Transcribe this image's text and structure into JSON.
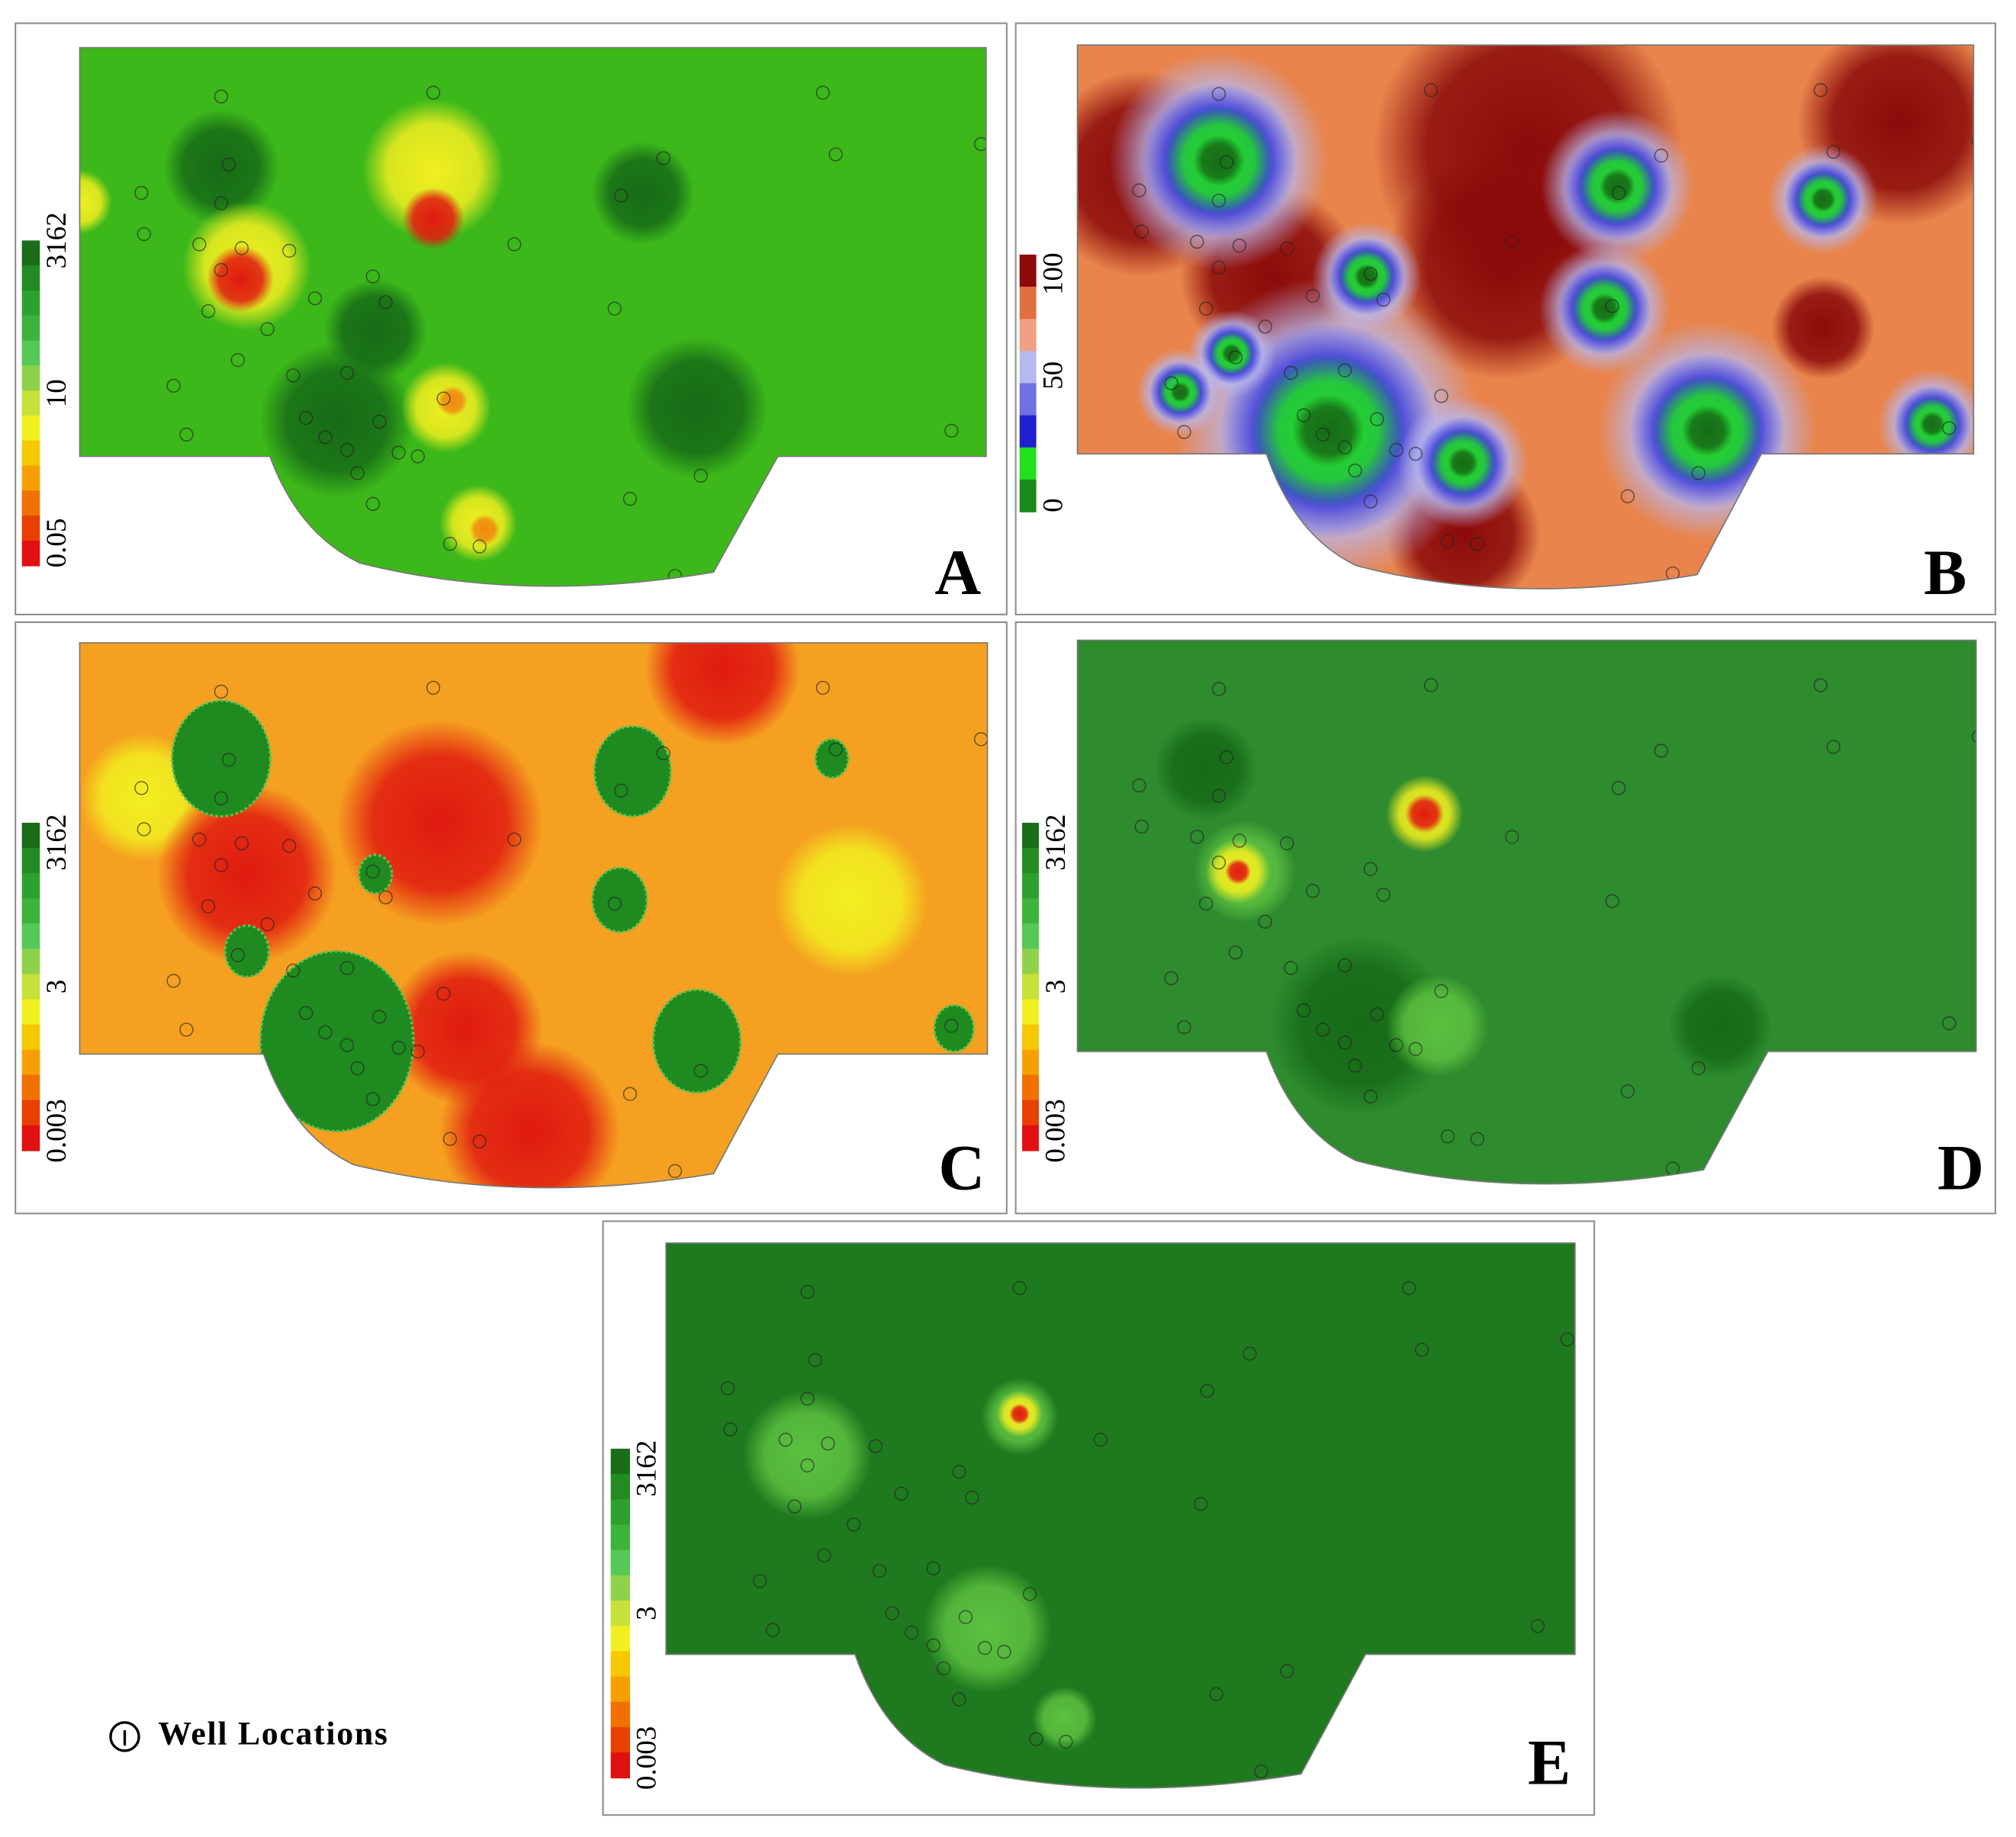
{
  "panels": [
    {
      "label": "A",
      "colorbar": {
        "ticks": [
          3162,
          10,
          0.05
        ],
        "colors": [
          "#1a6e1a",
          "#228b22",
          "#2ea02e",
          "#3cb43c",
          "#55c855",
          "#8fd24a",
          "#c8e03a",
          "#f0f020",
          "#f5c800",
          "#f5a000",
          "#f07000",
          "#e84000",
          "#e01010"
        ]
      }
    },
    {
      "label": "B",
      "colorbar": {
        "ticks": [
          100,
          50,
          0
        ],
        "colors": [
          "#8b0a0a",
          "#e07040",
          "#f0a080",
          "#b8b8f0",
          "#7070e0",
          "#2020d0",
          "#20e020",
          "#1a8a1a"
        ]
      }
    },
    {
      "label": "C",
      "colorbar": {
        "ticks": [
          3162,
          3,
          0.003
        ],
        "colors": [
          "#1a6e1a",
          "#228b22",
          "#2ea02e",
          "#3cb43c",
          "#55c855",
          "#8fd24a",
          "#c8e03a",
          "#f0f020",
          "#f5c800",
          "#f5a000",
          "#f07000",
          "#e84000",
          "#e01010"
        ]
      }
    },
    {
      "label": "D",
      "colorbar": {
        "ticks": [
          3162,
          3,
          0.003
        ],
        "colors": [
          "#1a6e1a",
          "#228b22",
          "#2ea02e",
          "#3cb43c",
          "#55c855",
          "#8fd24a",
          "#c8e03a",
          "#f0f020",
          "#f5c800",
          "#f5a000",
          "#f07000",
          "#e84000",
          "#e01010"
        ]
      }
    },
    {
      "label": "E",
      "colorbar": {
        "ticks": [
          3162,
          3,
          0.003
        ],
        "colors": [
          "#1a6e1a",
          "#228b22",
          "#2ea02e",
          "#3cb43c",
          "#55c855",
          "#8fd24a",
          "#c8e03a",
          "#f0f020",
          "#f5c800",
          "#f5a000",
          "#f07000",
          "#e84000",
          "#e01010"
        ]
      }
    }
  ],
  "legend": {
    "label": "Well Locations"
  }
}
